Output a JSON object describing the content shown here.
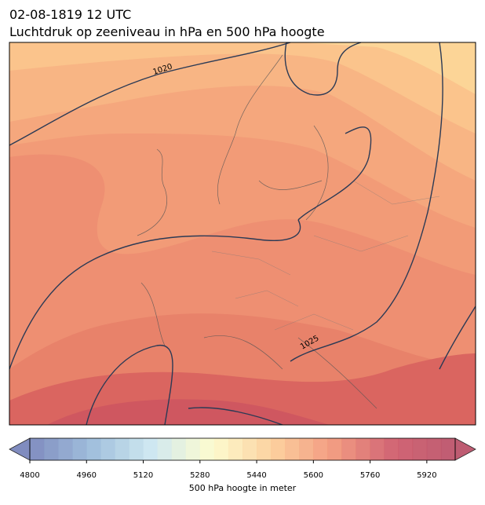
{
  "title": "02-08-1819 12 UTC",
  "subtitle": "Luchtdruk op zeeniveau in hPa en 500 hPa hoogte",
  "map": {
    "isobar_labels": [
      "1020",
      "1025"
    ]
  },
  "colorbar": {
    "label": "500 hPa hoogte in meter",
    "lim": [
      4800,
      6000
    ],
    "step": 40,
    "ticks": [
      4800,
      4960,
      5120,
      5280,
      5440,
      5600,
      5760,
      5920
    ],
    "colors": [
      "#6a78b4",
      "#8fb3d6",
      "#c6e4ee",
      "#fdfbc7",
      "#fcc88e",
      "#f08a6c",
      "#c94a5c",
      "#b3405a"
    ]
  }
}
